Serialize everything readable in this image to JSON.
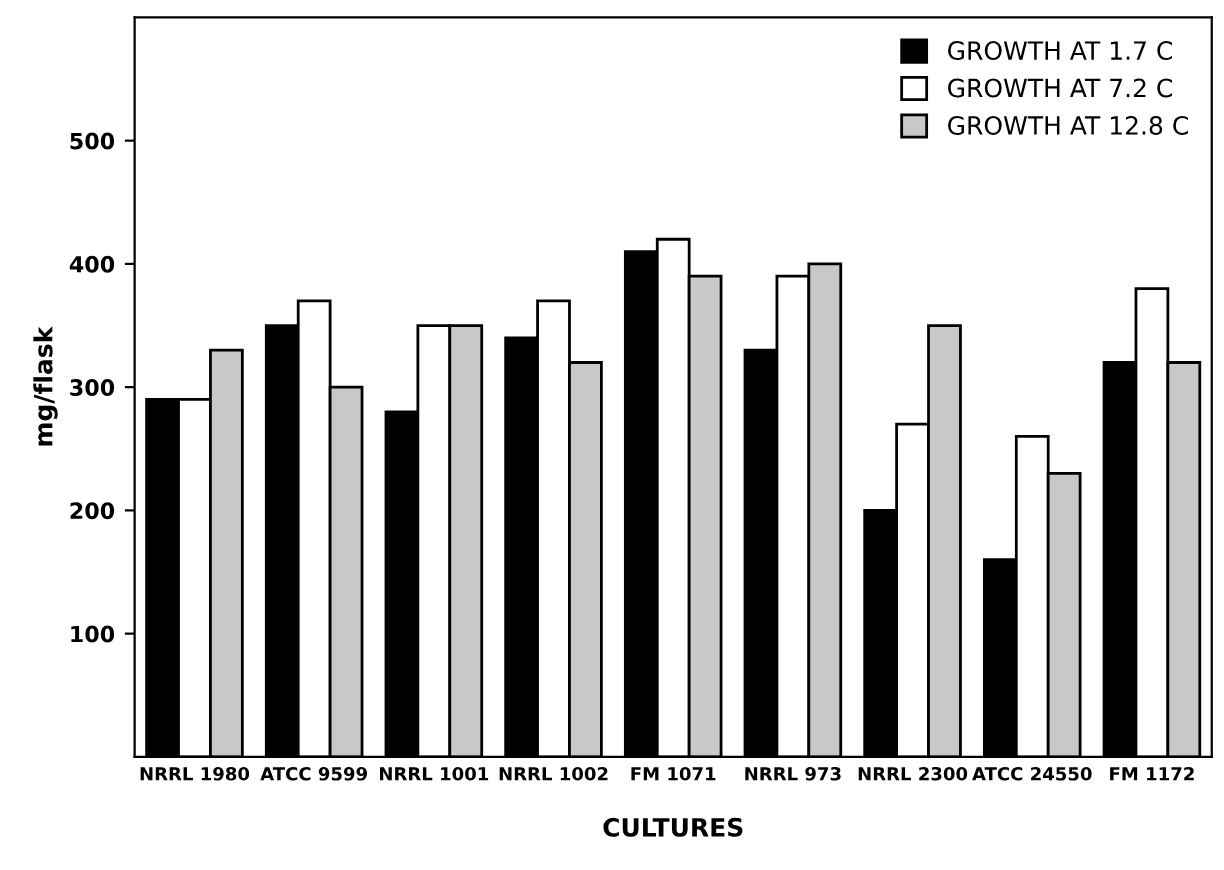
{
  "chart_data": {
    "type": "bar",
    "xlabel": "CULTURES",
    "ylabel": "mg/flask",
    "categories": [
      "NRRL 1980",
      "ATCC 9599",
      "NRRL 1001",
      "NRRL 1002",
      "FM 1071",
      "NRRL 973",
      "NRRL 2300",
      "ATCC 24550",
      "FM 1172"
    ],
    "series": [
      {
        "name": "GROWTH AT 1.7 C",
        "color": "#000000",
        "values": [
          290,
          350,
          280,
          340,
          410,
          330,
          200,
          160,
          320
        ]
      },
      {
        "name": "GROWTH AT 7.2 C",
        "color": "#ffffff",
        "values": [
          290,
          370,
          350,
          370,
          420,
          390,
          270,
          260,
          380
        ]
      },
      {
        "name": "GROWTH AT 12.8 C",
        "color": "#c8c8c8",
        "values": [
          330,
          300,
          350,
          320,
          390,
          400,
          350,
          230,
          320
        ]
      }
    ],
    "ylim": [
      0,
      600
    ],
    "yticks": [
      100,
      200,
      300,
      400,
      500
    ],
    "grid": false,
    "legend": "top right"
  }
}
